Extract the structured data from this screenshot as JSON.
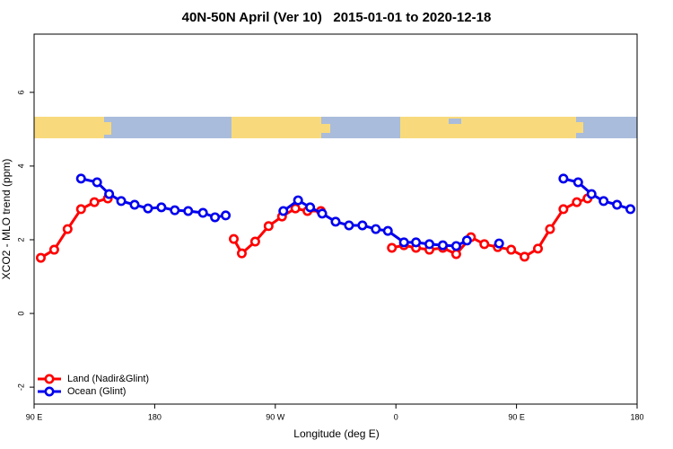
{
  "chart_data": {
    "type": "line",
    "title": "40N-50N April (Ver 10)   2015-01-01 to 2020-12-18",
    "x_label": "Longitude (deg E)",
    "y_label": "XCO2 - MLO trend (ppm)",
    "xlim": [
      90,
      540
    ],
    "xticks": [
      {
        "value": 90,
        "label": "90 E"
      },
      180,
      {
        "value": 270,
        "label": "90 W"
      },
      {
        "value": 360,
        "label": "0"
      },
      {
        "value": 450,
        "label": "90 E"
      },
      {
        "value": 540,
        "label": "180"
      }
    ],
    "ylim": [
      -2.46,
      7.58
    ],
    "yticks": [
      -2,
      0,
      2,
      4,
      6
    ],
    "legend": "bottom-left",
    "series": [
      {
        "name": "Land (Nadir&Glint)",
        "color": "#ff0000",
        "x": [
          95,
          105,
          115,
          125,
          135,
          145,
          null,
          239,
          245,
          255,
          265,
          275,
          285,
          294,
          304,
          null,
          357,
          366,
          375,
          385,
          395,
          405,
          416,
          426,
          436,
          446,
          456,
          466,
          475,
          485,
          495,
          503
        ],
        "values": [
          1.51,
          1.73,
          2.29,
          2.83,
          3.02,
          3.12,
          null,
          2.02,
          1.63,
          1.95,
          2.37,
          2.63,
          2.85,
          2.78,
          2.78,
          null,
          1.78,
          1.85,
          1.78,
          1.73,
          1.78,
          1.61,
          2.07,
          1.88,
          1.8,
          1.73,
          1.54,
          1.76,
          2.29,
          2.83,
          3.02,
          3.12
        ]
      },
      {
        "name": "Ocean (Glint)",
        "color": "#0000ee",
        "x": [
          125,
          137,
          146,
          155,
          165,
          175,
          185,
          195,
          205,
          216,
          225,
          233,
          null,
          276,
          287,
          296,
          305,
          315,
          325,
          335,
          345,
          354,
          366,
          375,
          385,
          395,
          405,
          413,
          null,
          437,
          null,
          485,
          496,
          506,
          515,
          525,
          535
        ],
        "values": [
          3.66,
          3.56,
          3.24,
          3.05,
          2.95,
          2.85,
          2.88,
          2.8,
          2.78,
          2.73,
          2.61,
          2.66,
          null,
          2.78,
          3.07,
          2.88,
          2.71,
          2.49,
          2.39,
          2.39,
          2.29,
          2.24,
          1.93,
          1.93,
          1.88,
          1.85,
          1.83,
          1.98,
          null,
          1.9,
          null,
          3.66,
          3.56,
          3.24,
          3.05,
          2.95,
          2.83
        ]
      }
    ]
  }
}
